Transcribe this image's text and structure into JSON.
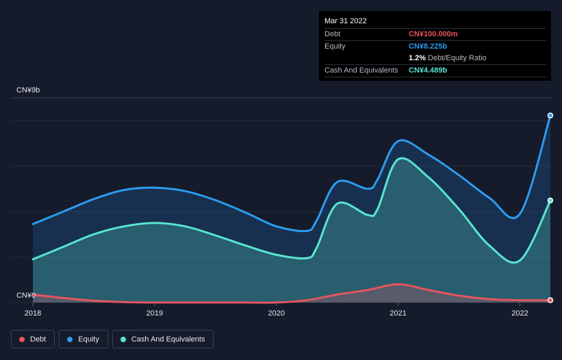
{
  "tooltip": {
    "date": "Mar 31 2022",
    "rows": [
      {
        "label": "Debt",
        "value": "CN¥100.000m",
        "color": "#e5555e"
      },
      {
        "label": "Equity",
        "value": "CN¥8.225b",
        "color": "#2d9cf0"
      },
      {
        "label": "",
        "value": "1.2%",
        "extra": "Debt/Equity Ratio",
        "color": "#ffffff"
      },
      {
        "label": "Cash And Equivalents",
        "value": "CN¥4.489b",
        "color": "#58e6cf"
      }
    ]
  },
  "legend": [
    {
      "label": "Debt",
      "color": "#e5555e"
    },
    {
      "label": "Equity",
      "color": "#2d9cf0"
    },
    {
      "label": "Cash And Equivalents",
      "color": "#58e6cf"
    }
  ],
  "chart_data": {
    "type": "area",
    "title": "",
    "xlabel": "",
    "ylabel": "",
    "ylim": [
      0,
      9
    ],
    "y_unit": "CN¥b",
    "y_tick_labels": [
      "CN¥9b",
      "CN¥0"
    ],
    "x_tick_labels": [
      "2018",
      "2019",
      "2020",
      "2021",
      "2022"
    ],
    "x_ticks": [
      2018,
      2019,
      2020,
      2021,
      2022
    ],
    "xlim": [
      2018,
      2022.25
    ],
    "series": [
      {
        "name": "Equity",
        "color": "#2d9cf0",
        "x": [
          2018.0,
          2018.25,
          2018.5,
          2018.75,
          2019.0,
          2019.25,
          2019.5,
          2019.75,
          2020.0,
          2020.25,
          2020.33,
          2020.5,
          2020.75,
          2020.83,
          2021.0,
          2021.25,
          2021.5,
          2021.75,
          2022.0,
          2022.25
        ],
        "values": [
          3.45,
          4.0,
          4.55,
          4.95,
          5.05,
          4.9,
          4.5,
          3.95,
          3.35,
          3.15,
          3.6,
          5.3,
          5.0,
          5.4,
          7.1,
          6.5,
          5.6,
          4.6,
          3.9,
          8.225
        ]
      },
      {
        "name": "Cash And Equivalents",
        "color": "#58e6cf",
        "x": [
          2018.0,
          2018.25,
          2018.5,
          2018.75,
          2019.0,
          2019.25,
          2019.5,
          2019.75,
          2020.0,
          2020.25,
          2020.33,
          2020.5,
          2020.75,
          2020.83,
          2021.0,
          2021.25,
          2021.5,
          2021.75,
          2022.0,
          2022.25
        ],
        "values": [
          1.9,
          2.45,
          3.0,
          3.35,
          3.5,
          3.35,
          2.95,
          2.5,
          2.1,
          1.95,
          2.4,
          4.35,
          3.85,
          4.1,
          6.3,
          5.5,
          4.1,
          2.5,
          1.85,
          4.489
        ]
      },
      {
        "name": "Debt",
        "color": "#e5555e",
        "x": [
          2018.0,
          2018.25,
          2018.5,
          2018.75,
          2019.0,
          2019.25,
          2019.5,
          2019.75,
          2020.0,
          2020.25,
          2020.5,
          2020.75,
          2021.0,
          2021.25,
          2021.5,
          2021.75,
          2022.0,
          2022.25
        ],
        "values": [
          0.35,
          0.2,
          0.08,
          0.02,
          0.0,
          0.0,
          0.0,
          0.0,
          0.0,
          0.1,
          0.35,
          0.55,
          0.8,
          0.55,
          0.3,
          0.15,
          0.1,
          0.1
        ]
      }
    ]
  }
}
